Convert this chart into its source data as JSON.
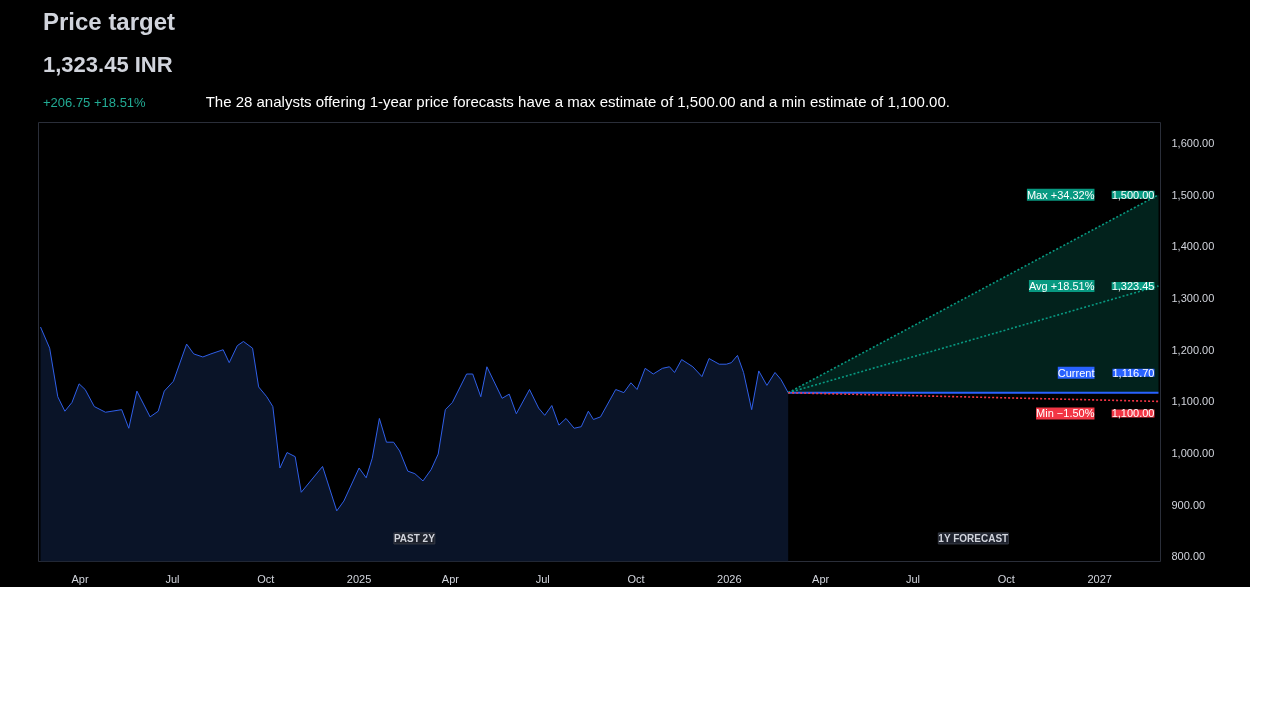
{
  "chart_data": {
    "type": "line",
    "title": "Price target",
    "subtitle": "1,323.45 INR",
    "annotations": [
      "+206.75  +18.51%",
      "The 28 analysts offering 1-year price forecasts have a max estimate of 1,500.00 and a min estimate of 1,100.00.",
      "PAST 2Y",
      "1Y FORECAST"
    ],
    "xlim": [
      "2024-02-20",
      "2027-03-02"
    ],
    "xticks": [
      {
        "value": "2024-04-01",
        "label": "Apr"
      },
      {
        "value": "2024-07-01",
        "label": "Jul"
      },
      {
        "value": "2024-10-01",
        "label": "Oct"
      },
      {
        "value": "2025-01-01",
        "label": "2025"
      },
      {
        "value": "2025-04-01",
        "label": "Apr"
      },
      {
        "value": "2025-07-01",
        "label": "Jul"
      },
      {
        "value": "2025-10-01",
        "label": "Oct"
      },
      {
        "value": "2026-01-01",
        "label": "2026"
      },
      {
        "value": "2026-04-01",
        "label": "Apr"
      },
      {
        "value": "2026-07-01",
        "label": "Jul"
      },
      {
        "value": "2026-10-01",
        "label": "Oct"
      },
      {
        "value": "2027-01-01",
        "label": "2027"
      }
    ],
    "ylim": [
      790,
      1640
    ],
    "yticks": [
      {
        "value": 800,
        "label": "800.00"
      },
      {
        "value": 900,
        "label": "900.00"
      },
      {
        "value": 1000,
        "label": "1,000.00"
      },
      {
        "value": 1100,
        "label": "1,100.00"
      },
      {
        "value": 1200,
        "label": "1,200.00"
      },
      {
        "value": 1300,
        "label": "1,300.00"
      },
      {
        "value": 1400,
        "label": "1,400.00"
      },
      {
        "value": 1500,
        "label": "1,500.00"
      },
      {
        "value": 1600,
        "label": "1,600.00"
      }
    ],
    "grid": false,
    "legend": "right",
    "series": [
      {
        "type": "area",
        "color": "#2f5fe8",
        "x": [
          "2024-02-22",
          "2024-03-02",
          "2024-03-10",
          "2024-03-17",
          "2024-03-24",
          "2024-03-31",
          "2024-04-06",
          "2024-04-15",
          "2024-04-26",
          "2024-05-12",
          "2024-05-19",
          "2024-05-27",
          "2024-06-09",
          "2024-06-17",
          "2024-06-23",
          "2024-07-02",
          "2024-07-15",
          "2024-07-22",
          "2024-07-31",
          "2024-08-08",
          "2024-08-20",
          "2024-08-26",
          "2024-09-03",
          "2024-09-09",
          "2024-09-18",
          "2024-09-24",
          "2024-10-02",
          "2024-10-08",
          "2024-10-15",
          "2024-10-22",
          "2024-10-30",
          "2024-11-05",
          "2024-11-26",
          "2024-12-10",
          "2024-12-17",
          "2025-01-01",
          "2025-01-08",
          "2025-01-14",
          "2025-01-21",
          "2025-01-28",
          "2025-02-04",
          "2025-02-10",
          "2025-02-18",
          "2025-02-25",
          "2025-03-05",
          "2025-03-13",
          "2025-03-20",
          "2025-03-27",
          "2025-04-03",
          "2025-04-17",
          "2025-04-23",
          "2025-05-01",
          "2025-05-07",
          "2025-05-22",
          "2025-05-29",
          "2025-06-05",
          "2025-06-18",
          "2025-06-27",
          "2025-07-03",
          "2025-07-10",
          "2025-07-17",
          "2025-07-24",
          "2025-08-01",
          "2025-08-08",
          "2025-08-15",
          "2025-08-20",
          "2025-08-27",
          "2025-09-11",
          "2025-09-19",
          "2025-09-26",
          "2025-10-02",
          "2025-10-10",
          "2025-10-18",
          "2025-10-27",
          "2025-11-03",
          "2025-11-08",
          "2025-11-15",
          "2025-11-26",
          "2025-12-05",
          "2025-12-12",
          "2025-12-22",
          "2025-12-29",
          "2026-01-03",
          "2026-01-09",
          "2026-01-15",
          "2026-01-23",
          "2026-01-30",
          "2026-02-07",
          "2026-02-15",
          "2026-02-21",
          "2026-02-28"
        ],
        "values": [
          1244,
          1203,
          1109,
          1081,
          1098,
          1134,
          1123,
          1090,
          1079,
          1084,
          1048,
          1120,
          1070,
          1081,
          1120,
          1139,
          1211,
          1192,
          1186,
          1192,
          1200,
          1175,
          1208,
          1216,
          1203,
          1128,
          1109,
          1090,
          971,
          1001,
          993,
          924,
          974,
          888,
          907,
          971,
          952,
          990,
          1067,
          1021,
          1021,
          1004,
          965,
          960,
          946,
          968,
          998,
          1084,
          1098,
          1153,
          1153,
          1109,
          1167,
          1106,
          1114,
          1076,
          1123,
          1087,
          1073,
          1092,
          1054,
          1067,
          1048,
          1051,
          1081,
          1065,
          1070,
          1123,
          1117,
          1136,
          1123,
          1164,
          1153,
          1164,
          1167,
          1156,
          1181,
          1167,
          1148,
          1183,
          1172,
          1172,
          1175,
          1189,
          1156,
          1084,
          1159,
          1131,
          1156,
          1142,
          1116.7
        ]
      },
      {
        "name": "Max +34.32%",
        "color": "#089981",
        "line_style": "dotted",
        "x": [
          "2026-02-28",
          "2027-02-28"
        ],
        "values": [
          1116.7,
          1500
        ],
        "lower": [
          1116.7,
          1116.7
        ],
        "upper": [
          1116.7,
          1500
        ],
        "value_labels": [
          null,
          "1,500.00"
        ]
      },
      {
        "name": "Avg +18.51%",
        "color": "#089981",
        "line_style": "dotted",
        "x": [
          "2026-02-28",
          "2027-02-28"
        ],
        "values": [
          1116.7,
          1323.45
        ],
        "value_labels": [
          null,
          "1,323.45"
        ]
      },
      {
        "name": "Min −1.50%",
        "color": "#f23645",
        "line_style": "dotted",
        "x": [
          "2026-02-28",
          "2027-02-28"
        ],
        "values": [
          1116.7,
          1100
        ],
        "value_labels": [
          null,
          "1,100.00"
        ]
      },
      {
        "name": "Current",
        "color": "#2962ff",
        "line_style": "solid",
        "x": [
          "2026-02-28",
          "2027-02-28"
        ],
        "values": [
          1116.7,
          1116.7
        ],
        "value_labels": [
          null,
          "1,116.70"
        ]
      }
    ]
  }
}
